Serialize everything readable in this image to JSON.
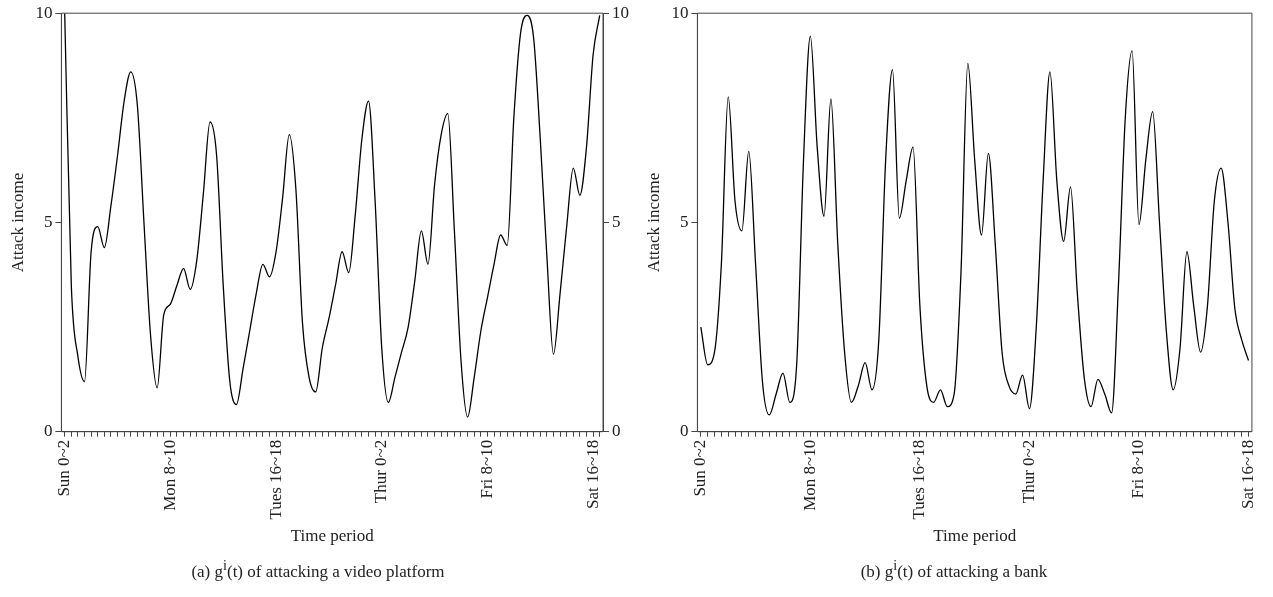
{
  "chart_data": [
    {
      "type": "line",
      "title": "(a)  g$^{i}$(t) of attacking a video platform",
      "xlabel": "Time period",
      "ylabel": "Attack income",
      "categories": [
        "Sun 0~2",
        null,
        null,
        null,
        null,
        null,
        null,
        null,
        null,
        null,
        null,
        null,
        null,
        null,
        null,
        null,
        "Mon 8~10",
        null,
        null,
        null,
        null,
        null,
        null,
        null,
        null,
        null,
        null,
        null,
        null,
        null,
        null,
        null,
        "Tues 16~18",
        null,
        null,
        null,
        null,
        null,
        null,
        null,
        null,
        null,
        null,
        null,
        null,
        null,
        null,
        null,
        "Thur 0~2",
        null,
        null,
        null,
        null,
        null,
        null,
        null,
        null,
        null,
        null,
        null,
        null,
        null,
        null,
        null,
        "Fri 8~10",
        null,
        null,
        null,
        null,
        null,
        null,
        null,
        null,
        null,
        null,
        null,
        null,
        null,
        null,
        null,
        "Sat 16~18",
        null
      ],
      "ylim": [
        0,
        10
      ],
      "yticks": [
        0,
        5,
        10
      ],
      "y2lim": [
        0,
        10
      ],
      "y2ticks": [
        0,
        5,
        10
      ],
      "series": [
        {
          "color": "#000000",
          "values": [
            10,
            3.5,
            1.8,
            1.2,
            4.3,
            4.9,
            4.4,
            5.4,
            6.6,
            7.9,
            8.6,
            7.8,
            5.0,
            2.3,
            1.05,
            2.8,
            3.05,
            3.5,
            3.9,
            3.4,
            4.1,
            5.7,
            7.4,
            6.6,
            3.5,
            1.2,
            0.65,
            1.5,
            2.4,
            3.3,
            4.0,
            3.7,
            4.3,
            5.6,
            7.1,
            5.8,
            2.6,
            1.3,
            0.95,
            2.0,
            2.7,
            3.5,
            4.3,
            3.8,
            5.2,
            7.0,
            7.9,
            5.5,
            2.0,
            0.7,
            1.3,
            1.9,
            2.5,
            3.6,
            4.8,
            4.0,
            5.9,
            7.1,
            7.6,
            4.8,
            1.7,
            0.35,
            1.3,
            2.4,
            3.2,
            4.0,
            4.7,
            4.45,
            7.5,
            9.5,
            9.95,
            9.4,
            7.0,
            4.2,
            1.85,
            3.3,
            4.9,
            6.3,
            5.65,
            6.8,
            9.0,
            9.95
          ]
        }
      ]
    },
    {
      "type": "line",
      "title": "(b)  g$^{i}$(t) of attacking a bank",
      "xlabel": "Time period",
      "ylabel": "Attack income",
      "categories": [
        "Sun 0~2",
        null,
        null,
        null,
        null,
        null,
        null,
        null,
        null,
        null,
        null,
        null,
        null,
        null,
        null,
        null,
        "Mon 8~10",
        null,
        null,
        null,
        null,
        null,
        null,
        null,
        null,
        null,
        null,
        null,
        null,
        null,
        null,
        null,
        "Tues 16~18",
        null,
        null,
        null,
        null,
        null,
        null,
        null,
        null,
        null,
        null,
        null,
        null,
        null,
        null,
        null,
        "Thur 0~2",
        null,
        null,
        null,
        null,
        null,
        null,
        null,
        null,
        null,
        null,
        null,
        null,
        null,
        null,
        null,
        "Fri 8~10",
        null,
        null,
        null,
        null,
        null,
        null,
        null,
        null,
        null,
        null,
        null,
        null,
        null,
        null,
        null,
        "Sat 16~18"
      ],
      "ylim": [
        0,
        10
      ],
      "yticks": [
        0,
        5,
        10
      ],
      "series": [
        {
          "color": "#000000",
          "values": [
            2.5,
            1.6,
            1.9,
            4.0,
            8.0,
            5.5,
            4.8,
            6.7,
            4.0,
            1.2,
            0.4,
            0.9,
            1.4,
            0.7,
            1.6,
            6.5,
            9.45,
            6.8,
            5.15,
            7.95,
            4.5,
            1.9,
            0.7,
            1.1,
            1.65,
            1.0,
            2.2,
            6.5,
            8.65,
            5.1,
            6.0,
            6.8,
            3.0,
            1.1,
            0.7,
            1.0,
            0.6,
            0.9,
            3.8,
            8.8,
            6.5,
            4.7,
            6.65,
            4.5,
            1.9,
            1.1,
            0.9,
            1.35,
            0.55,
            2.5,
            6.0,
            8.6,
            6.0,
            4.55,
            5.85,
            3.3,
            1.3,
            0.6,
            1.25,
            0.9,
            0.45,
            3.5,
            7.5,
            9.1,
            4.95,
            6.5,
            7.65,
            5.0,
            2.4,
            1.0,
            2.0,
            4.3,
            3.0,
            1.9,
            3.0,
            5.5,
            6.3,
            5.0,
            2.95,
            2.2,
            1.7
          ]
        }
      ]
    }
  ]
}
